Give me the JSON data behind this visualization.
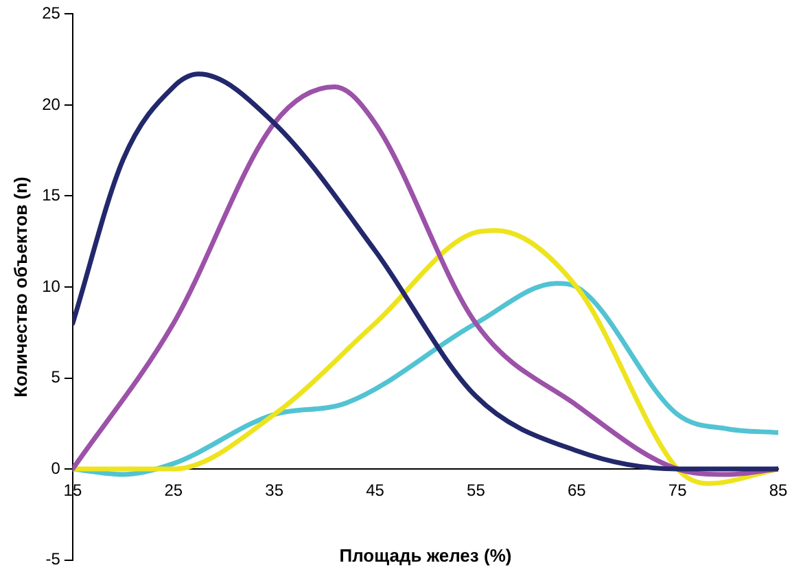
{
  "chart_data": {
    "type": "line",
    "xlabel": "Площадь желез (%)",
    "ylabel": "Количество объектов (n)",
    "xlim": [
      15,
      85
    ],
    "xticks": [
      15,
      25,
      35,
      45,
      55,
      65,
      75,
      85
    ],
    "ylim": [
      -5,
      25
    ],
    "yticks": [
      -5,
      0,
      5,
      10,
      15,
      20,
      25
    ],
    "grid": false,
    "legend": false,
    "marker": "none",
    "line_style": "solid",
    "series": [
      {
        "color": "#22286b",
        "x": [
          15,
          20,
          25,
          27.5,
          35,
          45,
          55,
          65,
          75,
          85
        ],
        "values": [
          8,
          17,
          21,
          21.7,
          19,
          12,
          4,
          1,
          0,
          0
        ]
      },
      {
        "color": "#9c52a8",
        "x": [
          15,
          25,
          35,
          41,
          45,
          55,
          65,
          75,
          80,
          85
        ],
        "values": [
          0,
          8,
          19,
          21,
          19,
          8,
          3.5,
          0,
          -0.3,
          0
        ]
      },
      {
        "color": "#ede41e",
        "x": [
          15,
          25,
          35,
          45,
          55,
          57,
          65,
          75,
          78,
          85
        ],
        "values": [
          0,
          0,
          3,
          8,
          13,
          13.1,
          10,
          0,
          -0.8,
          0
        ]
      },
      {
        "color": "#52c3d2",
        "x": [
          15,
          20,
          25,
          35,
          42,
          55,
          63,
          65,
          75,
          80,
          85
        ],
        "values": [
          0,
          -0.3,
          0.3,
          3,
          3.6,
          8,
          10.2,
          10,
          3,
          2.2,
          2
        ]
      }
    ]
  }
}
